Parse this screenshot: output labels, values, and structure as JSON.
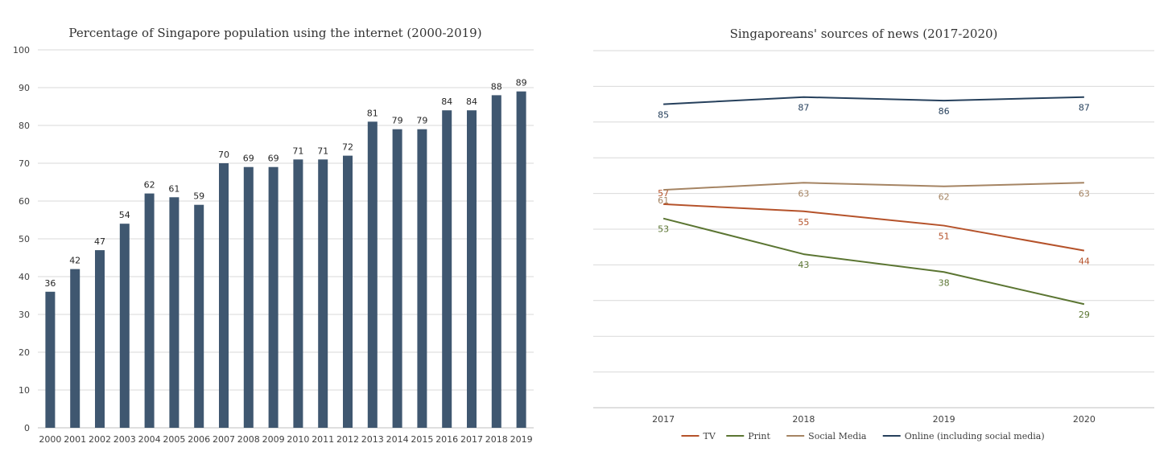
{
  "charts": [
    {
      "id": "internet",
      "chart_data": {
        "type": "bar",
        "title": "Percentage of Singapore population using the internet (2000-2019)",
        "xlabel": "",
        "ylabel": "",
        "ylim": [
          0,
          100
        ],
        "yticks": [
          0,
          10,
          20,
          30,
          40,
          50,
          60,
          70,
          80,
          90,
          100
        ],
        "categories": [
          "2000",
          "2001",
          "2002",
          "2003",
          "2004",
          "2005",
          "2006",
          "2007",
          "2008",
          "2009",
          "2010",
          "2011",
          "2012",
          "2013",
          "2014",
          "2015",
          "2016",
          "2017",
          "2018",
          "2019"
        ],
        "values": [
          36,
          42,
          47,
          54,
          62,
          61,
          59,
          70,
          69,
          69,
          71,
          71,
          72,
          81,
          79,
          79,
          84,
          84,
          88,
          89
        ],
        "grid": true,
        "bar_color": "#3f5770"
      }
    },
    {
      "id": "news",
      "chart_data": {
        "type": "line",
        "title": "Singaporeans' sources of news (2017-2020)",
        "xlabel": "",
        "ylabel": "",
        "ylim": [
          0,
          100
        ],
        "yticks": [
          0,
          10,
          20,
          30,
          40,
          50,
          60,
          70,
          80,
          90,
          100
        ],
        "categories": [
          "2017",
          "2018",
          "2019",
          "2020"
        ],
        "grid": true,
        "legend_position": "bottom",
        "series": [
          {
            "name": "TV",
            "color": "#b5522a",
            "values": [
              57,
              55,
              51,
              44
            ]
          },
          {
            "name": "Print",
            "color": "#5b7532",
            "values": [
              53,
              43,
              38,
              29
            ]
          },
          {
            "name": "Social Media",
            "color": "#a58463",
            "values": [
              61,
              63,
              62,
              63
            ]
          },
          {
            "name": "Online (including social media)",
            "color": "#26405c",
            "values": [
              85,
              87,
              86,
              87
            ]
          }
        ]
      }
    }
  ]
}
